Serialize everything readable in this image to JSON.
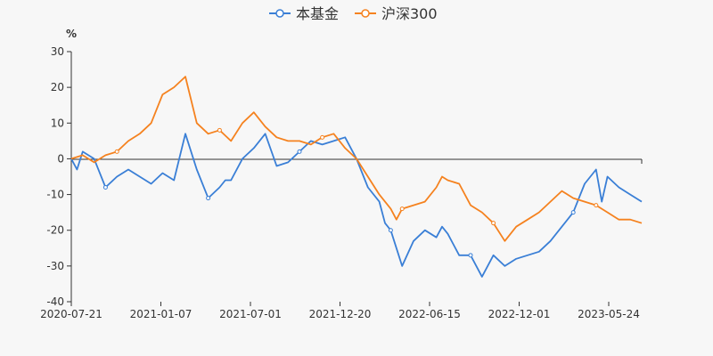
{
  "chart_data": {
    "type": "line",
    "title": "",
    "ylabel": "%",
    "xlabel": "",
    "ylim": [
      -40,
      30
    ],
    "yticks": [
      30,
      20,
      10,
      0,
      -10,
      -20,
      -30,
      -40
    ],
    "x_tick_labels": [
      "2020-07-21",
      "2021-01-07",
      "2021-07-01",
      "2021-12-20",
      "2022-06-15",
      "2022-12-01",
      "2023-05-24"
    ],
    "grid": false,
    "legend_position": "top-center",
    "series": [
      {
        "name": "本基金",
        "color": "#3a7fd6",
        "x": [
          0.0,
          0.01,
          0.02,
          0.04,
          0.06,
          0.08,
          0.1,
          0.12,
          0.14,
          0.16,
          0.18,
          0.2,
          0.22,
          0.24,
          0.26,
          0.27,
          0.28,
          0.3,
          0.32,
          0.34,
          0.36,
          0.38,
          0.4,
          0.42,
          0.44,
          0.46,
          0.48,
          0.5,
          0.52,
          0.54,
          0.55,
          0.56,
          0.57,
          0.58,
          0.6,
          0.62,
          0.64,
          0.65,
          0.66,
          0.68,
          0.7,
          0.72,
          0.74,
          0.76,
          0.78,
          0.8,
          0.82,
          0.84,
          0.86,
          0.88,
          0.9,
          0.92,
          0.93,
          0.94,
          0.96,
          0.98,
          1.0
        ],
        "values": [
          0,
          -3,
          2,
          0,
          -8,
          -5,
          -3,
          -5,
          -7,
          -4,
          -6,
          7,
          -3,
          -11,
          -8,
          -6,
          -6,
          0,
          3,
          7,
          -2,
          -1,
          2,
          5,
          4,
          5,
          6,
          0,
          -8,
          -12,
          -18,
          -20,
          -25,
          -30,
          -23,
          -20,
          -22,
          -19,
          -21,
          -27,
          -27,
          -33,
          -27,
          -30,
          -28,
          -27,
          -26,
          -23,
          -19,
          -15,
          -7,
          -3,
          -12,
          -5,
          -8,
          -10,
          -12
        ]
      },
      {
        "name": "沪深300",
        "color": "#f5821f",
        "x": [
          0.0,
          0.02,
          0.04,
          0.06,
          0.08,
          0.1,
          0.12,
          0.14,
          0.16,
          0.18,
          0.2,
          0.22,
          0.24,
          0.26,
          0.28,
          0.3,
          0.32,
          0.34,
          0.36,
          0.38,
          0.4,
          0.42,
          0.44,
          0.46,
          0.48,
          0.5,
          0.52,
          0.54,
          0.55,
          0.56,
          0.57,
          0.58,
          0.6,
          0.62,
          0.64,
          0.65,
          0.66,
          0.68,
          0.7,
          0.72,
          0.74,
          0.76,
          0.78,
          0.8,
          0.82,
          0.84,
          0.86,
          0.88,
          0.9,
          0.92,
          0.94,
          0.96,
          0.98,
          1.0
        ],
        "values": [
          0,
          1,
          -1,
          1,
          2,
          5,
          7,
          10,
          18,
          20,
          23,
          10,
          7,
          8,
          5,
          10,
          13,
          9,
          6,
          5,
          5,
          4,
          6,
          7,
          3,
          0,
          -5,
          -10,
          -12,
          -14,
          -17,
          -14,
          -13,
          -12,
          -8,
          -5,
          -6,
          -7,
          -13,
          -15,
          -18,
          -23,
          -19,
          -17,
          -15,
          -12,
          -9,
          -11,
          -12,
          -13,
          -15,
          -17,
          -17,
          -18
        ]
      }
    ]
  }
}
